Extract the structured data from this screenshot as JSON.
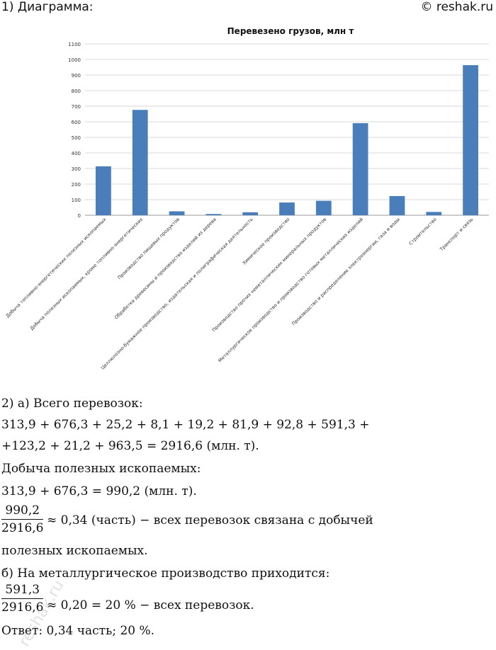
{
  "header": {
    "section_label": "1) Диаграмма:",
    "watermark": "© reshak.ru"
  },
  "chart_data": {
    "type": "bar",
    "title": "Перевезено грузов, млн т",
    "xlabel": "",
    "ylabel": "",
    "ylim": [
      0,
      1100
    ],
    "yticks": [
      0,
      100,
      200,
      300,
      400,
      500,
      600,
      700,
      800,
      900,
      1000,
      1100
    ],
    "grid": true,
    "bar_color": "#4a7ebb",
    "categories": [
      "Добыча топливно-энергетических  полезных ископаемых",
      "Добыча полезных ископаемых, кроме топливно-энергетических",
      "Производство пищевых продуктов",
      "Обработка древесины и производство изделий из дерева",
      "Целлюлозно-бумажное производство, издательская и полиграфическая деятельность",
      "Химическое производство",
      "Производство  прочих неметаллических  минеральных продуктов",
      "Металлургическое производство и производство готовых металлических изделий",
      "Производство и распределение  электроэнергии, газа и воды",
      "Строительство",
      "Транспорт и связь"
    ],
    "values": [
      313.9,
      676.3,
      25.2,
      8.1,
      19.2,
      81.9,
      92.8,
      591.3,
      123.2,
      21.2,
      963.5
    ]
  },
  "solution": {
    "line1": "2) а) Всего перевозок:",
    "line2": "313,9 + 676,3 + 25,2 + 8,1 + 19,2 + 81,9 + 92,8 + 591,3 +",
    "line3": "+123,2 + 21,2 + 963,5 = 2916,6 (млн. т).",
    "line4": "Добыча полезных ископаемых:",
    "line5": "313,9 + 676,3 = 990,2 (млн. т).",
    "frac1_num": "990,2",
    "frac1_den": "2916,6",
    "frac1_rest": "≈ 0,34 (часть) − всех перевозок связана с добычей",
    "line7": "полезных ископаемых.",
    "line8": "б) На металлургическое производство приходится:",
    "frac2_num": "591,3",
    "frac2_den": "2916,6",
    "frac2_rest": "≈ 0,20 = 20 % − всех перевозок.",
    "answer": "Ответ: 0,34 часть;   20 %."
  },
  "side_watermark": "reshak.ru"
}
